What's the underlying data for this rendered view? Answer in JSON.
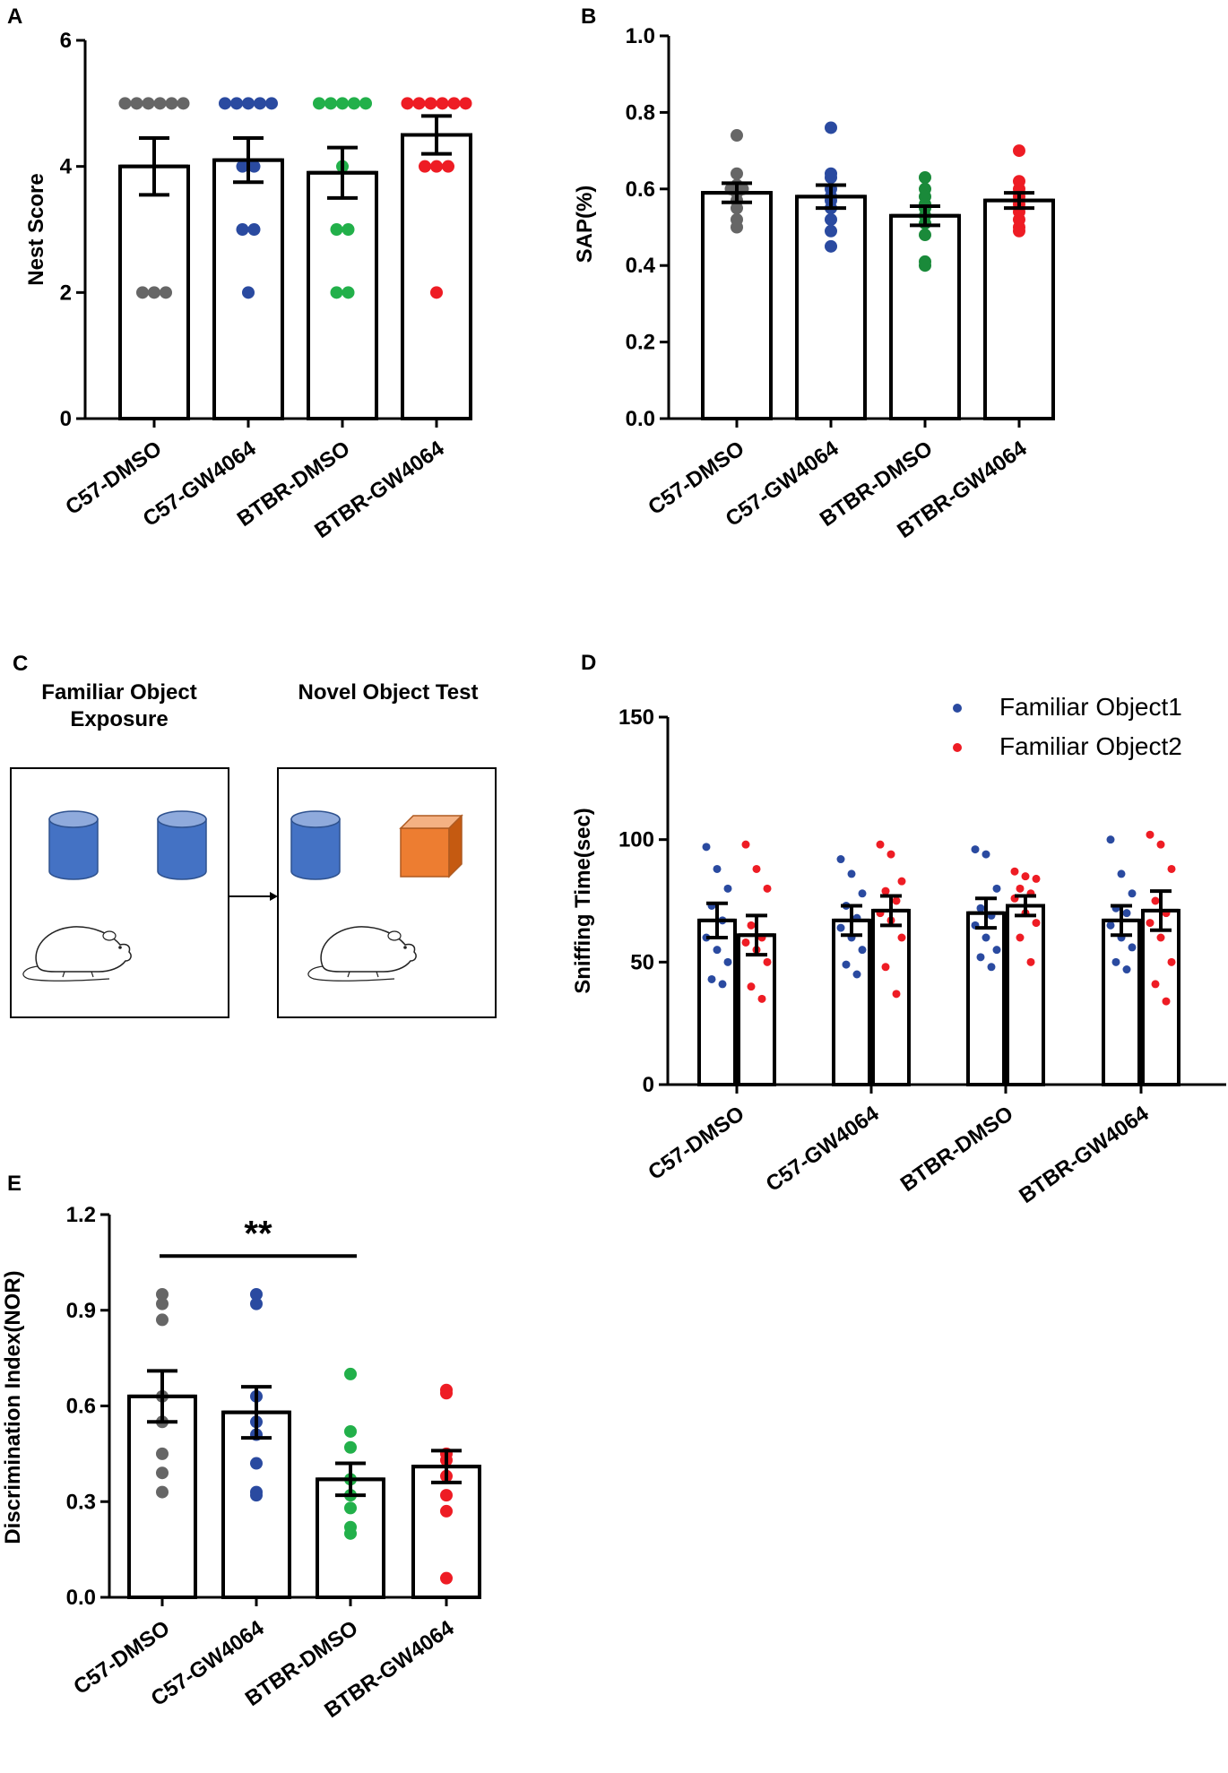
{
  "figure": {
    "panel_c": {
      "label": "C",
      "left_title_line1": "Familiar Object",
      "left_title_line2": "Exposure",
      "right_title": "Novel Object Test"
    }
  },
  "colors": {
    "gray": "#666666",
    "blue": "#2a4aa0",
    "green": "#22b04a",
    "darkgreen": "#1a8a3a",
    "red": "#ee1c24",
    "cylinder": "#4472c4",
    "cube": "#ed7d31"
  },
  "chart_data": [
    {
      "id": "A",
      "panel_label": "A",
      "type": "bar",
      "title": "",
      "xlabel": "",
      "ylabel": "Nest Score",
      "ylim": [
        0,
        6
      ],
      "yticks": [
        "0",
        "2",
        "4",
        "6"
      ],
      "categories": [
        "C57-DMSO",
        "C57-GW4064",
        "BTBR-DMSO",
        "BTBR-GW4064"
      ],
      "values": [
        4.0,
        4.1,
        3.9,
        4.5
      ],
      "errors": [
        0.45,
        0.35,
        0.4,
        0.3
      ],
      "point_colors": [
        "gray",
        "blue",
        "green",
        "red"
      ],
      "points": [
        [
          5,
          5,
          5,
          5,
          5,
          5,
          2,
          2,
          2
        ],
        [
          5,
          5,
          5,
          5,
          5,
          4,
          4,
          3,
          3,
          2
        ],
        [
          5,
          5,
          5,
          5,
          5,
          4,
          3,
          3,
          2,
          2
        ],
        [
          5,
          5,
          5,
          5,
          5,
          5,
          4,
          4,
          4,
          2
        ]
      ]
    },
    {
      "id": "B",
      "panel_label": "B",
      "type": "bar",
      "title": "",
      "xlabel": "",
      "ylabel": "SAP(%)",
      "ylim": [
        0,
        1.0
      ],
      "yticks": [
        "0.0",
        "0.2",
        "0.4",
        "0.6",
        "0.8",
        "1.0"
      ],
      "categories": [
        "C57-DMSO",
        "C57-GW4064",
        "BTBR-DMSO",
        "BTBR-GW4064"
      ],
      "values": [
        0.59,
        0.58,
        0.53,
        0.57
      ],
      "errors": [
        0.025,
        0.03,
        0.025,
        0.02
      ],
      "point_colors": [
        "gray",
        "blue",
        "darkgreen",
        "red"
      ],
      "points": [
        [
          0.74,
          0.64,
          0.61,
          0.6,
          0.6,
          0.59,
          0.57,
          0.55,
          0.52,
          0.5
        ],
        [
          0.76,
          0.64,
          0.63,
          0.6,
          0.58,
          0.57,
          0.55,
          0.52,
          0.49,
          0.45
        ],
        [
          0.63,
          0.6,
          0.58,
          0.56,
          0.55,
          0.53,
          0.51,
          0.48,
          0.41,
          0.4
        ],
        [
          0.7,
          0.62,
          0.6,
          0.59,
          0.58,
          0.56,
          0.54,
          0.52,
          0.5,
          0.49
        ]
      ]
    },
    {
      "id": "D",
      "panel_label": "D",
      "type": "bar",
      "title": "",
      "xlabel": "",
      "ylabel": "Sniffing Time(sec)",
      "ylim": [
        0,
        150
      ],
      "yticks": [
        "0",
        "50",
        "100",
        "150"
      ],
      "categories": [
        "C57-DMSO",
        "C57-GW4064",
        "BTBR-DMSO",
        "BTBR-GW4064"
      ],
      "legend": [
        "Familiar Object1",
        "Familiar Object2"
      ],
      "legend_position": "top-right",
      "series": [
        {
          "name": "Familiar Object1",
          "color": "blue",
          "values": [
            67,
            67,
            70,
            67
          ],
          "errors": [
            7,
            6,
            6,
            6
          ],
          "points": [
            [
              97,
              88,
              80,
              73,
              67,
              60,
              55,
              50,
              43,
              41
            ],
            [
              92,
              86,
              78,
              73,
              68,
              64,
              60,
              55,
              49,
              45
            ],
            [
              96,
              94,
              80,
              72,
              69,
              65,
              60,
              55,
              52,
              48
            ],
            [
              100,
              86,
              78,
              72,
              70,
              65,
              60,
              56,
              50,
              47
            ]
          ]
        },
        {
          "name": "Familiar Object2",
          "color": "red",
          "values": [
            61,
            71,
            73,
            71
          ],
          "errors": [
            8,
            6,
            4,
            8
          ],
          "points": [
            [
              98,
              88,
              80,
              65,
              60,
              58,
              55,
              50,
              40,
              35
            ],
            [
              98,
              94,
              83,
              79,
              75,
              70,
              67,
              60,
              48,
              37
            ],
            [
              87,
              85,
              84,
              80,
              78,
              76,
              70,
              66,
              60,
              50
            ],
            [
              102,
              98,
              88,
              75,
              70,
              66,
              60,
              50,
              41,
              34
            ]
          ]
        }
      ]
    },
    {
      "id": "E",
      "panel_label": "E",
      "type": "bar",
      "title": "",
      "xlabel": "",
      "ylabel": "Discrimination Index(NOR)",
      "ylim": [
        0,
        1.2
      ],
      "yticks": [
        "0.0",
        "0.3",
        "0.6",
        "0.9",
        "1.2"
      ],
      "categories": [
        "C57-DMSO",
        "C57-GW4064",
        "BTBR-DMSO",
        "BTBR-GW4064"
      ],
      "values": [
        0.63,
        0.58,
        0.37,
        0.41
      ],
      "errors": [
        0.08,
        0.08,
        0.05,
        0.05
      ],
      "point_colors": [
        "gray",
        "blue",
        "green",
        "red"
      ],
      "points": [
        [
          0.95,
          0.92,
          0.87,
          0.63,
          0.55,
          0.45,
          0.39,
          0.33
        ],
        [
          0.95,
          0.92,
          0.63,
          0.55,
          0.51,
          0.42,
          0.33,
          0.32
        ],
        [
          0.7,
          0.52,
          0.47,
          0.37,
          0.32,
          0.28,
          0.22,
          0.2
        ],
        [
          0.65,
          0.64,
          0.45,
          0.43,
          0.38,
          0.32,
          0.27,
          0.06
        ]
      ],
      "significance": {
        "label": "**",
        "from_category": "C57-DMSO",
        "to_category": "BTBR-DMSO",
        "y": 1.07
      }
    }
  ]
}
